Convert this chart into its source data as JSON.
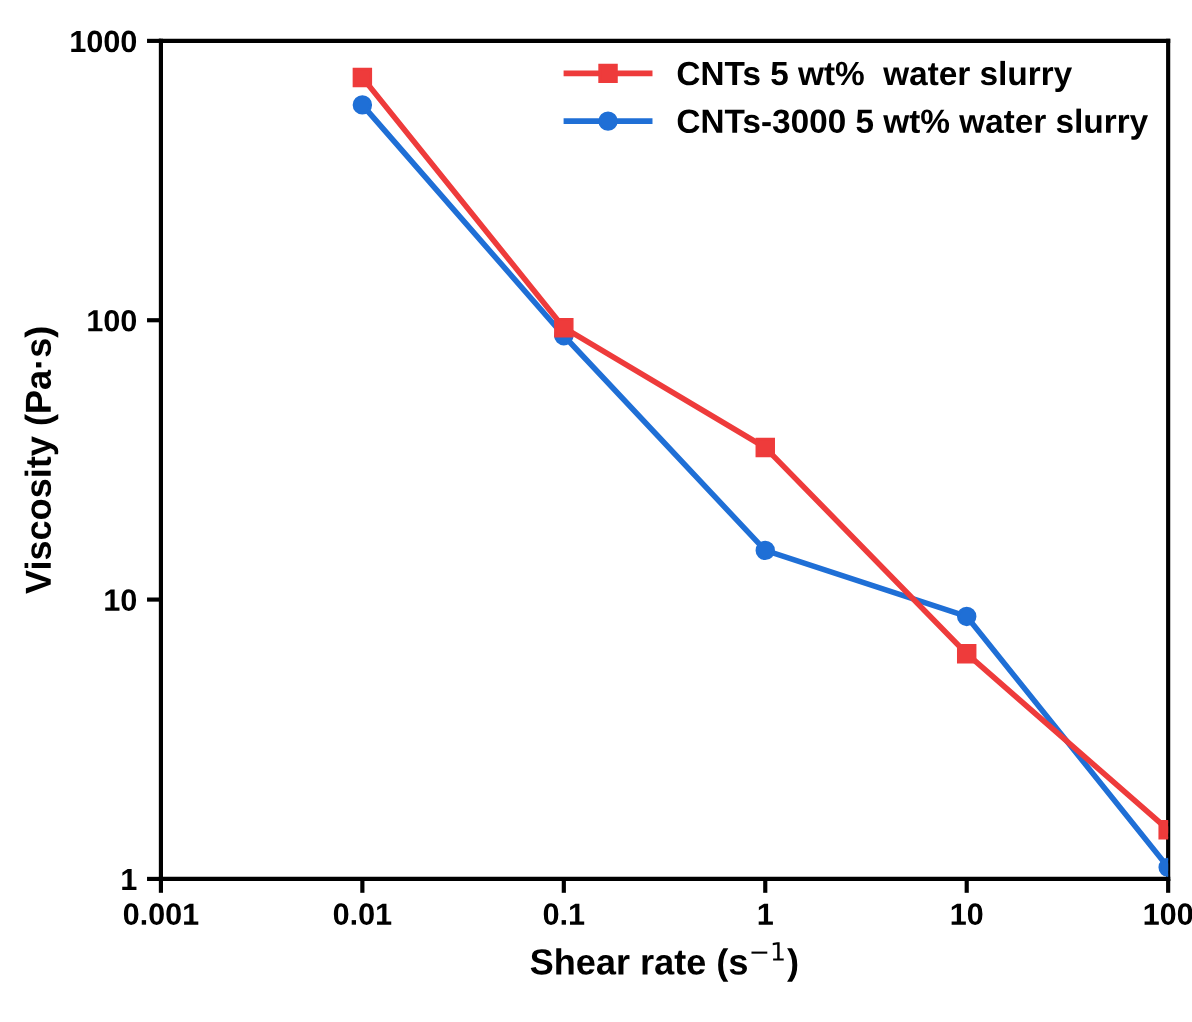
{
  "chart_data": {
    "type": "line",
    "xlabel": "Shear rate (s$^{−1}$)",
    "ylabel": "Viscosity (Pa·s)",
    "log": "xy",
    "x": [
      0.01,
      0.1,
      1,
      10,
      100
    ],
    "series": [
      {
        "name": "CNTs 5 wt%  water slurry",
        "color": "#ee3b3b",
        "marker": "square",
        "values": [
          740,
          94,
          35,
          6.4,
          1.5
        ]
      },
      {
        "name": "CNTs-3000 5 wt% water slurry",
        "color": "#1f6fd6",
        "marker": "circle",
        "values": [
          590,
          88,
          15,
          8.7,
          1.1
        ]
      }
    ],
    "xlim": [
      0.001,
      100
    ],
    "ylim": [
      1,
      1000
    ],
    "xticks": [
      0.001,
      0.01,
      0.1,
      1,
      10,
      100
    ],
    "yticks": [
      1,
      10,
      100,
      1000
    ],
    "grid": false,
    "legend": "top right",
    "line_style": "solid"
  }
}
